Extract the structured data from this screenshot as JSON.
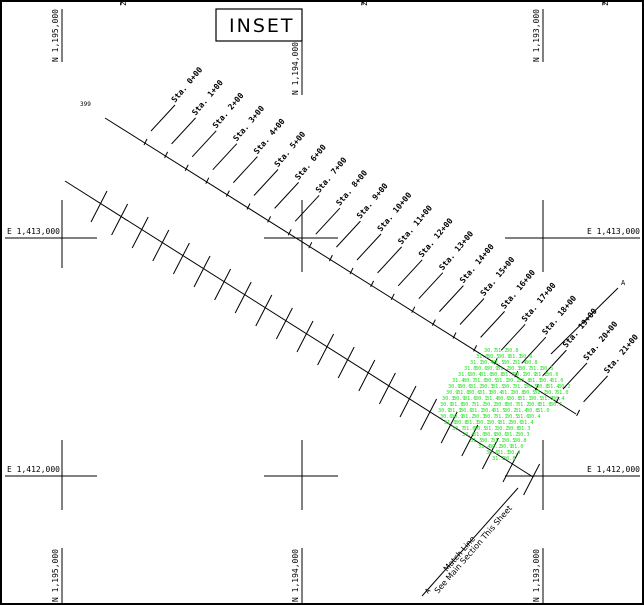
{
  "title": "INSET",
  "point_label": "399",
  "northings": {
    "top": [
      "N 1,195,000",
      "N 1,194,000",
      "N 1,193,000"
    ],
    "bottom": [
      "N 1,195,000",
      "N 1,194,000",
      "N 1,193,000"
    ]
  },
  "eastings": {
    "upper_left": "E 1,413,000",
    "upper_right": "E 1,413,000",
    "lower_left": "E 1,412,000",
    "lower_right": "E 1,412,000"
  },
  "stations": [
    "Sta. 0+00",
    "Sta. 1+00",
    "Sta. 2+00",
    "Sta. 3+00",
    "Sta. 4+00",
    "Sta. 5+00",
    "Sta. 6+00",
    "Sta. 7+00",
    "Sta. 8+00",
    "Sta. 9+00",
    "Sta. 10+00",
    "Sta. 11+00",
    "Sta. 12+00",
    "Sta. 13+00",
    "Sta. 14+00",
    "Sta. 15+00",
    "Sta. 16+00",
    "Sta. 17+00",
    "Sta. 18+00",
    "Sta. 19+00",
    "Sta. 20+00",
    "Sta. 21+00"
  ],
  "section_marker": "A",
  "match_line": {
    "line1": "Match Line",
    "line2": "See Main Section This Sheet",
    "marker": "A"
  },
  "top_edge_marks": [
    "2",
    "2",
    "2"
  ],
  "soundings_color": "#22e022",
  "soundings": [
    "30.7",
    "31.2",
    "30.8",
    "31.0",
    "30.5",
    "30.9",
    "31.3",
    "30.6",
    "31.1",
    "30.4",
    "31.5",
    "30.2",
    "31.4",
    "30.8",
    "31.0",
    "30.6",
    "30.9",
    "31.2",
    "30.3",
    "30.7",
    "31.1",
    "30.5",
    "31.6",
    "30.4",
    "31.0",
    "30.8",
    "31.3",
    "30.1",
    "30.9",
    "31.2",
    "30.6",
    "31.4",
    "30.7",
    "31.0",
    "30.5",
    "31.1",
    "30.2",
    "30.8",
    "31.3",
    "30.4",
    "31.0",
    "30.9",
    "30.6",
    "31.2",
    "30.3",
    "31.5",
    "30.7",
    "31.1",
    "30.5",
    "30.8",
    "31.4",
    "30.2",
    "30.9",
    "31.0",
    "30.6",
    "31.3",
    "30.4",
    "31.1",
    "30.8",
    "30.5",
    "31.2",
    "30.7",
    "31.0",
    "30.3",
    "30.9",
    "31.6",
    "30.1",
    "31.4",
    "30.6",
    "30.8",
    "31.1",
    "30.5",
    "31.3",
    "30.4",
    "30.9",
    "31.0",
    "30.7",
    "31.2",
    "30.2",
    "30.8"
  ]
}
